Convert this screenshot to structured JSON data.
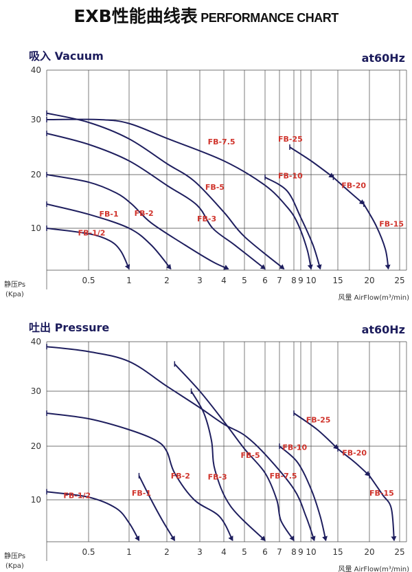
{
  "title": {
    "main": "EXB性能曲线表",
    "sub": "PERFORMANCE CHART"
  },
  "chart_data": [
    {
      "type": "line",
      "title": "吸入 Vacuum",
      "frequency": "at60Hz",
      "ylabel": "静压Ps",
      "yunit": "(Kpa)",
      "xlabel": "风量 AirFlow(m³/min)",
      "yticks": [
        "10",
        "20",
        "30",
        "40"
      ],
      "xticks": [
        "0.5",
        "1",
        "2",
        "3",
        "4",
        "5",
        "6",
        "7",
        "8",
        "9",
        "10",
        "15",
        "20",
        "25"
      ],
      "ylim": [
        0,
        40
      ],
      "xscale": "log",
      "grid": true,
      "series": [
        {
          "name": "FB-1/2",
          "label_at": [
            0.42,
            8.3
          ],
          "points": [
            [
              0.25,
              10
            ],
            [
              0.5,
              8.7
            ],
            [
              0.72,
              7
            ],
            [
              0.87,
              4.5
            ],
            [
              1,
              0.3
            ]
          ]
        },
        {
          "name": "FB-1",
          "label_at": [
            0.6,
            12.2
          ],
          "points": [
            [
              0.25,
              14.5
            ],
            [
              0.5,
              12.6
            ],
            [
              1,
              10
            ],
            [
              1.5,
              6
            ],
            [
              2.1,
              0.3
            ]
          ]
        },
        {
          "name": "FB-2",
          "label_at": [
            1.1,
            12.3
          ],
          "points": [
            [
              0.25,
              20
            ],
            [
              0.5,
              18.6
            ],
            [
              0.8,
              16.6
            ],
            [
              1.05,
              14.5
            ],
            [
              1.5,
              11
            ],
            [
              2.5,
              6
            ],
            [
              3.5,
              2
            ],
            [
              4.2,
              0.3
            ]
          ]
        },
        {
          "name": "FB-3",
          "label_at": [
            2.9,
            11.3
          ],
          "points": [
            [
              0.25,
              27.5
            ],
            [
              0.5,
              25.5
            ],
            [
              1,
              22.5
            ],
            [
              2,
              18
            ],
            [
              2.9,
              14.3
            ],
            [
              3.5,
              10
            ],
            [
              4.5,
              6
            ],
            [
              6,
              0.3
            ]
          ]
        },
        {
          "name": "FB-5",
          "label_at": [
            3.2,
            17.2
          ],
          "points": [
            [
              0.25,
              31.3
            ],
            [
              0.5,
              29.5
            ],
            [
              1,
              26.5
            ],
            [
              2,
              22
            ],
            [
              2.8,
              18.8
            ],
            [
              4,
              13
            ],
            [
              5,
              8
            ],
            [
              7.3,
              0.3
            ]
          ]
        },
        {
          "name": "FB-7.5",
          "label_at": [
            3.3,
            25.5
          ],
          "points": [
            [
              0.25,
              30
            ],
            [
              0.6,
              30
            ],
            [
              1,
              29.3
            ],
            [
              2,
              26.6
            ],
            [
              4,
              22.5
            ],
            [
              6,
              18
            ],
            [
              7.5,
              14
            ],
            [
              8.5,
              11
            ],
            [
              9.6,
              5
            ],
            [
              10,
              0.3
            ]
          ]
        },
        {
          "name": "FB-10",
          "label_at": [
            6.9,
            19.3
          ],
          "points": [
            [
              6,
              19.5
            ],
            [
              7.5,
              17
            ],
            [
              9,
              12
            ],
            [
              10.3,
              6
            ],
            [
              11.5,
              0.3
            ]
          ]
        },
        {
          "name": "FB-25",
          "label_at": [
            6.9,
            26
          ],
          "points": [
            [
              7.7,
              25
            ],
            [
              10,
              22.5
            ],
            [
              14,
              19.5
            ]
          ]
        },
        {
          "name": "FB-20",
          "label_at": [
            15.5,
            17.5
          ],
          "points": [
            [
              14,
              19.5
            ],
            [
              16.5,
              17
            ],
            [
              19,
              14.5
            ]
          ]
        },
        {
          "name": "FB-15",
          "label_at": [
            21.5,
            10.3
          ],
          "points": [
            [
              19,
              14.5
            ],
            [
              21,
              10.5
            ],
            [
              22.5,
              5
            ],
            [
              23,
              0.3
            ]
          ]
        }
      ]
    },
    {
      "type": "line",
      "title": "吐出 Pressure",
      "frequency": "at60Hz",
      "ylabel": "静压Ps",
      "yunit": "(Kpa)",
      "xlabel": "风量 AirFlow(m³/min)",
      "yticks": [
        "10",
        "20",
        "30",
        "40"
      ],
      "xticks": [
        "0.5",
        "1",
        "2",
        "3",
        "4",
        "5",
        "6",
        "7",
        "8",
        "9",
        "10",
        "15",
        "20",
        "25"
      ],
      "ylim": [
        0,
        40
      ],
      "xscale": "log",
      "grid": true,
      "series": [
        {
          "name": "FB-1/2",
          "label_at": [
            0.33,
            10.3
          ],
          "points": [
            [
              0.25,
              11.5
            ],
            [
              0.5,
              10.5
            ],
            [
              0.8,
              8
            ],
            [
              1,
              4.5
            ],
            [
              1.2,
              0.3
            ]
          ]
        },
        {
          "name": "FB-1",
          "label_at": [
            1.05,
            10.8
          ],
          "points": [
            [
              1.2,
              14.5
            ],
            [
              1.5,
              10
            ],
            [
              1.85,
              5
            ],
            [
              2.2,
              0.3
            ]
          ]
        },
        {
          "name": "FB-2",
          "label_at": [
            2.1,
            14
          ],
          "points": [
            [
              0.25,
              26
            ],
            [
              0.5,
              25
            ],
            [
              1,
              23
            ],
            [
              1.65,
              21
            ],
            [
              2,
              19
            ],
            [
              2.2,
              15
            ],
            [
              2.8,
              10
            ],
            [
              3.8,
              6
            ],
            [
              4.4,
              0.3
            ]
          ]
        },
        {
          "name": "FB-3",
          "label_at": [
            3.3,
            13.8
          ],
          "points": [
            [
              2.7,
              30
            ],
            [
              3.15,
              26
            ],
            [
              3.45,
              21
            ],
            [
              3.6,
              15.5
            ],
            [
              4.3,
              8.5
            ],
            [
              6,
              0.3
            ]
          ]
        },
        {
          "name": "FB-5",
          "label_at": [
            4.8,
            17.8
          ],
          "points": [
            [
              2.2,
              35.5
            ],
            [
              3,
              30
            ],
            [
              4,
              24.5
            ],
            [
              5,
              19.5
            ],
            [
              6,
              15
            ],
            [
              6.8,
              10
            ],
            [
              7.1,
              5
            ],
            [
              8,
              0.3
            ]
          ]
        },
        {
          "name": "FB-7.5",
          "label_at": [
            6.3,
            14
          ],
          "points": [
            [
              0.25,
              39
            ],
            [
              0.5,
              38
            ],
            [
              1,
              36
            ],
            [
              2,
              31
            ],
            [
              3,
              27
            ],
            [
              4,
              24
            ],
            [
              5,
              22
            ],
            [
              6,
              18.5
            ],
            [
              8,
              12
            ],
            [
              9.5,
              6
            ],
            [
              10.5,
              0.3
            ]
          ]
        },
        {
          "name": "FB-10",
          "label_at": [
            7.2,
            19.3
          ],
          "points": [
            [
              7,
              20
            ],
            [
              8.5,
              17
            ],
            [
              10,
              12
            ],
            [
              11.5,
              6
            ],
            [
              12.5,
              0.3
            ]
          ]
        },
        {
          "name": "FB-25",
          "label_at": [
            9.5,
            24.3
          ],
          "points": [
            [
              8,
              26
            ],
            [
              11,
              23
            ],
            [
              15,
              19.5
            ]
          ]
        },
        {
          "name": "FB-20",
          "label_at": [
            15.6,
            18.3
          ],
          "points": [
            [
              15,
              19.5
            ],
            [
              17.5,
              17
            ],
            [
              20,
              14.5
            ]
          ]
        },
        {
          "name": "FB-15",
          "label_at": [
            20,
            10.8
          ],
          "points": [
            [
              20,
              14.5
            ],
            [
              22,
              11
            ],
            [
              23.5,
              8
            ],
            [
              24,
              0.3
            ]
          ]
        }
      ]
    }
  ]
}
